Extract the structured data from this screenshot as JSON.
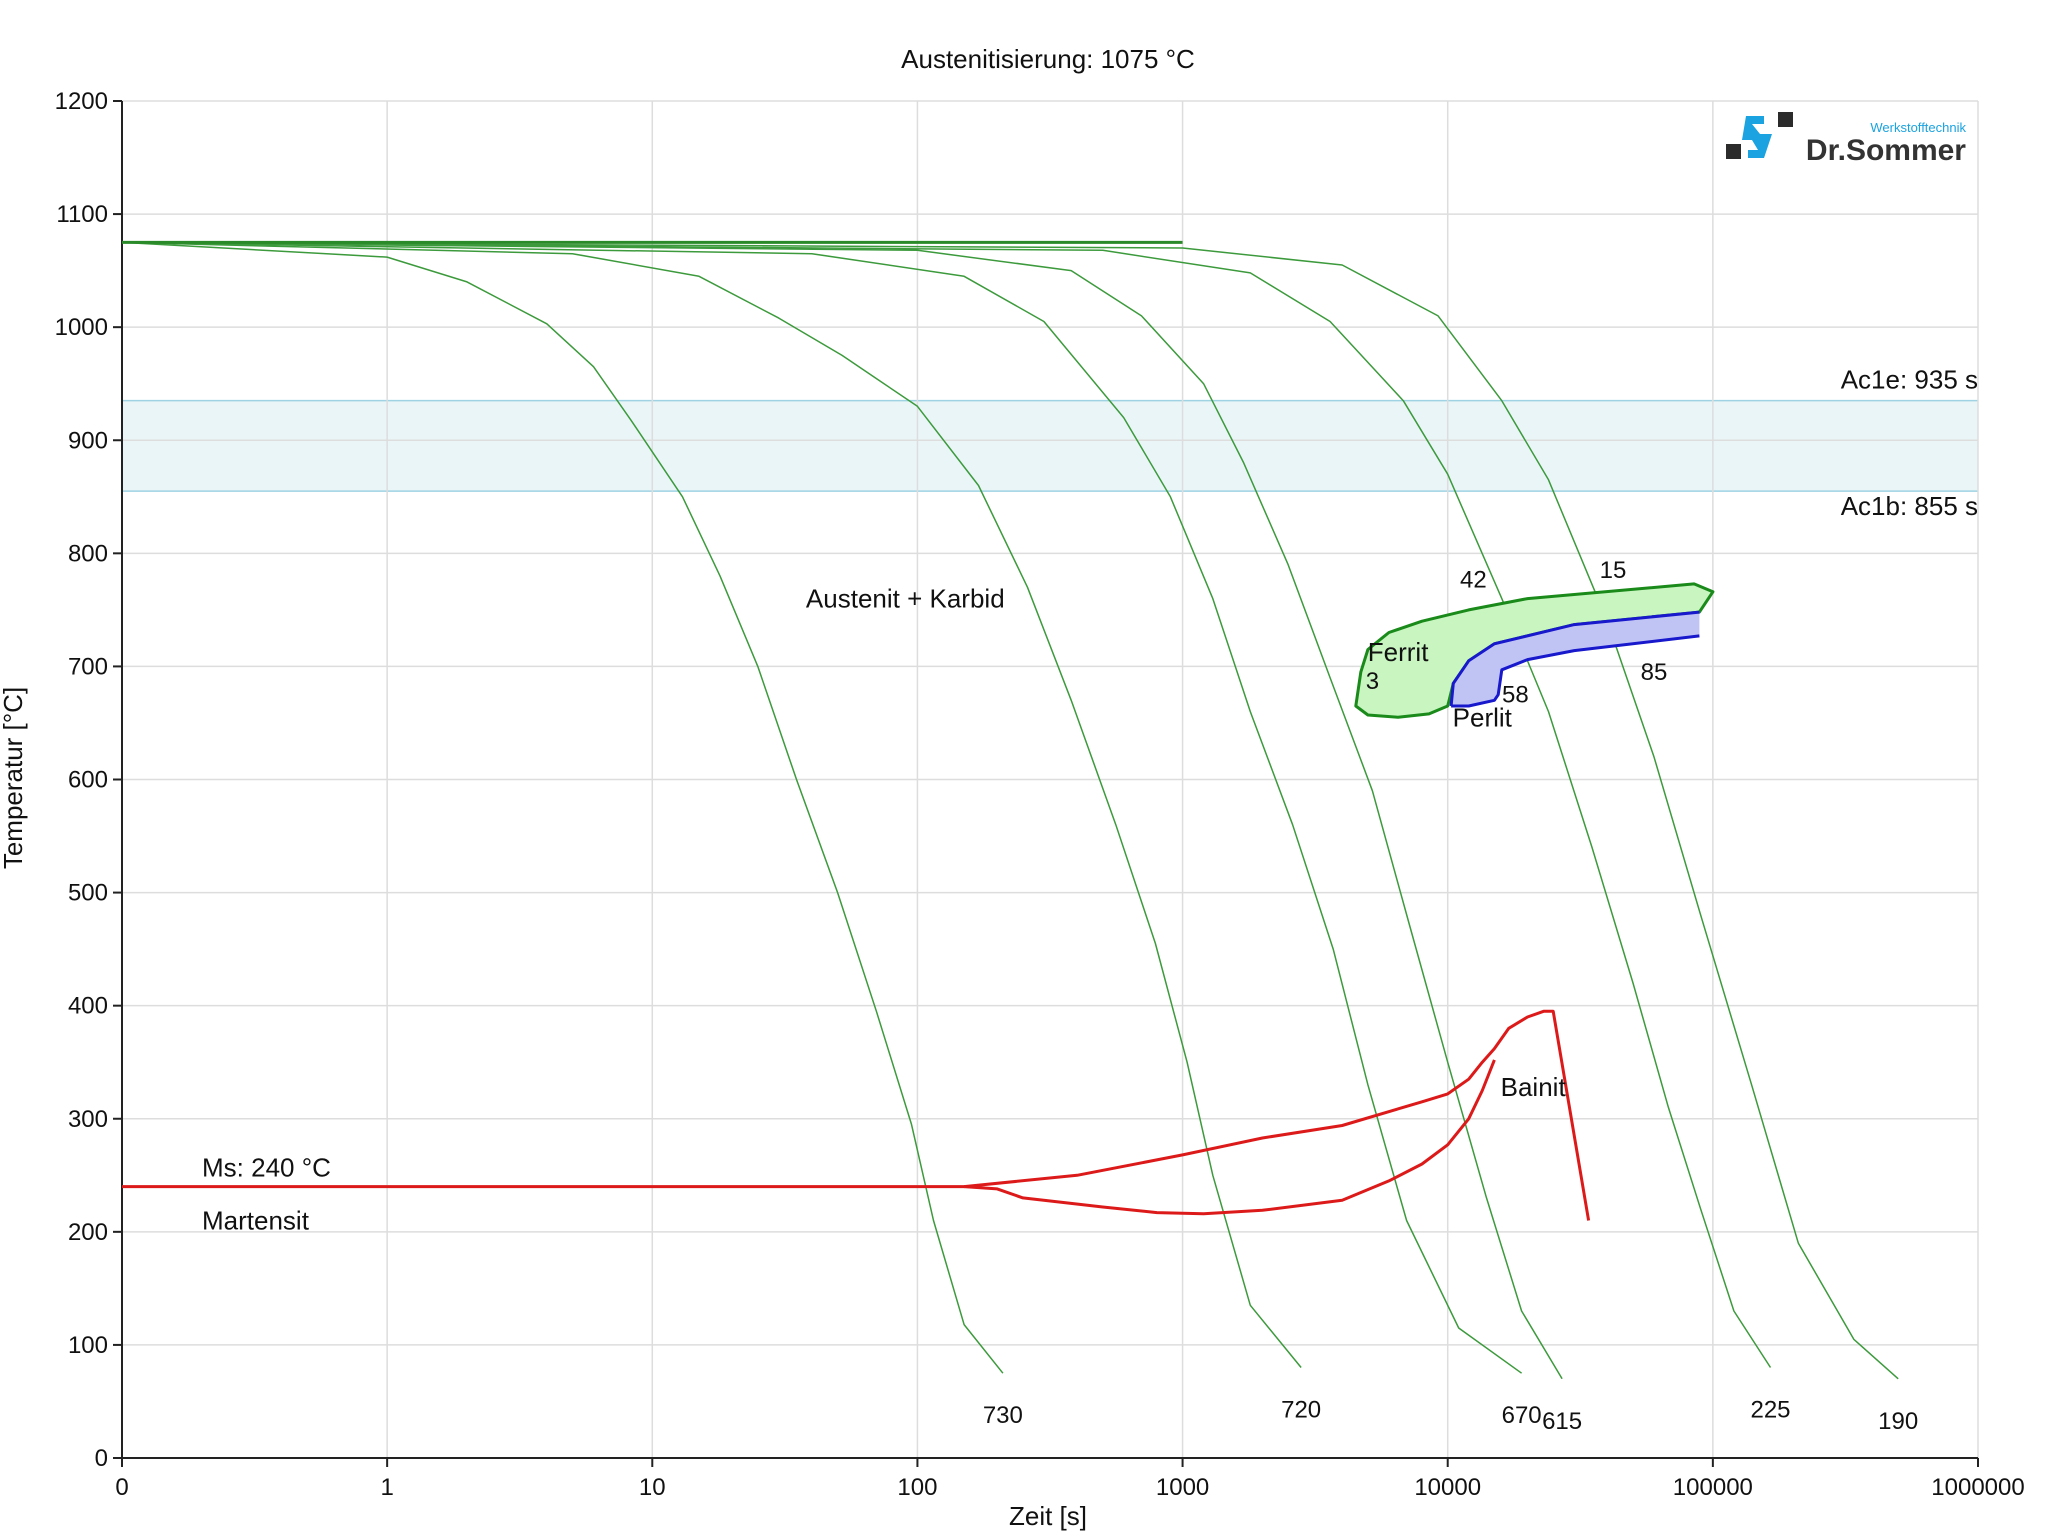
{
  "chart_data": {
    "type": "line",
    "title": "Austenitisierung: 1075 °C",
    "xlabel": "Zeit [s]",
    "ylabel": "Temperatur [°C]",
    "x_scale": "log",
    "xlim": [
      0.1,
      1000000
    ],
    "ylim": [
      0,
      1200
    ],
    "grid": true,
    "x_ticks": [
      {
        "value": 0.1,
        "label": "0"
      },
      {
        "value": 1,
        "label": "1"
      },
      {
        "value": 10,
        "label": "10"
      },
      {
        "value": 100,
        "label": "100"
      },
      {
        "value": 1000,
        "label": "1000"
      },
      {
        "value": 10000,
        "label": "10000"
      },
      {
        "value": 100000,
        "label": "100000"
      },
      {
        "value": 1000000,
        "label": "1000000"
      }
    ],
    "y_ticks": [
      0,
      100,
      200,
      300,
      400,
      500,
      600,
      700,
      800,
      900,
      1000,
      1100,
      1200
    ],
    "ac_band": {
      "upper": {
        "value": 935,
        "label": "Ac1e: 935 s"
      },
      "lower": {
        "value": 855,
        "label": "Ac1b: 855 s"
      },
      "color": "#eaf5f8",
      "line_color": "#9fd2e3"
    },
    "cooling_curves": [
      {
        "end_label": "730",
        "color": "#3c9a3c",
        "points": [
          [
            0.1,
            1075
          ],
          [
            1,
            1062
          ],
          [
            2,
            1040
          ],
          [
            4,
            1003
          ],
          [
            6,
            965
          ],
          [
            8.3,
            918
          ],
          [
            13,
            850
          ],
          [
            18,
            780
          ],
          [
            25,
            700
          ],
          [
            35,
            600
          ],
          [
            50,
            500
          ],
          [
            70,
            395
          ],
          [
            95,
            295
          ],
          [
            115,
            210
          ],
          [
            150,
            118
          ],
          [
            210,
            75
          ]
        ]
      },
      {
        "end_label": "720",
        "color": "#3c9a3c",
        "points": [
          [
            0.1,
            1075
          ],
          [
            5,
            1065
          ],
          [
            15,
            1045
          ],
          [
            30,
            1008
          ],
          [
            52,
            975
          ],
          [
            100,
            930
          ],
          [
            170,
            860
          ],
          [
            260,
            770
          ],
          [
            380,
            670
          ],
          [
            560,
            560
          ],
          [
            790,
            455
          ],
          [
            1040,
            350
          ],
          [
            1300,
            250
          ],
          [
            1800,
            135
          ],
          [
            2800,
            80
          ]
        ]
      },
      {
        "end_label": "670",
        "color": "#3c9a3c",
        "points": [
          [
            0.1,
            1075
          ],
          [
            40,
            1065
          ],
          [
            150,
            1045
          ],
          [
            300,
            1005
          ],
          [
            600,
            920
          ],
          [
            900,
            850
          ],
          [
            1300,
            760
          ],
          [
            1800,
            660
          ],
          [
            2600,
            560
          ],
          [
            3700,
            450
          ],
          [
            5000,
            330
          ],
          [
            7000,
            210
          ],
          [
            11000,
            115
          ],
          [
            19000,
            75
          ]
        ]
      },
      {
        "end_label": "615",
        "color": "#3c9a3c",
        "points": [
          [
            0.1,
            1075
          ],
          [
            100,
            1068
          ],
          [
            380,
            1050
          ],
          [
            700,
            1010
          ],
          [
            1200,
            950
          ],
          [
            1700,
            880
          ],
          [
            2500,
            790
          ],
          [
            3600,
            690
          ],
          [
            5200,
            590
          ],
          [
            7200,
            470
          ],
          [
            10000,
            350
          ],
          [
            14000,
            230
          ],
          [
            19000,
            130
          ],
          [
            27000,
            70
          ]
        ]
      },
      {
        "end_label": "225",
        "color": "#3c9a3c",
        "points": [
          [
            0.1,
            1075
          ],
          [
            500,
            1068
          ],
          [
            1800,
            1048
          ],
          [
            3600,
            1005
          ],
          [
            6800,
            935
          ],
          [
            10000,
            870
          ],
          [
            16000,
            760
          ],
          [
            24000,
            660
          ],
          [
            35000,
            540
          ],
          [
            50000,
            420
          ],
          [
            68000,
            310
          ],
          [
            90000,
            220
          ],
          [
            120000,
            130
          ],
          [
            165000,
            80
          ]
        ]
      },
      {
        "end_label": "190",
        "color": "#3c9a3c",
        "points": [
          [
            0.1,
            1075
          ],
          [
            1000,
            1070
          ],
          [
            4000,
            1055
          ],
          [
            9200,
            1010
          ],
          [
            16000,
            935
          ],
          [
            24000,
            865
          ],
          [
            40000,
            740
          ],
          [
            60000,
            620
          ],
          [
            90000,
            480
          ],
          [
            140000,
            330
          ],
          [
            210000,
            190
          ],
          [
            340000,
            105
          ],
          [
            500000,
            70
          ]
        ]
      }
    ],
    "curve_label_points": [
      {
        "label": "42",
        "x": 12500,
        "y": 770
      },
      {
        "label": "15",
        "x": 42000,
        "y": 778
      },
      {
        "label": "3",
        "x": 5200,
        "y": 680
      },
      {
        "label": "58",
        "x": 18000,
        "y": 668
      },
      {
        "label": "85",
        "x": 60000,
        "y": 688
      }
    ],
    "regions": [
      {
        "name": "Ferrit",
        "color": "#1a8a1a",
        "fill": "#c8f5c0",
        "label": "Ferrit"
      },
      {
        "name": "Perlit",
        "color": "#1818cc",
        "fill": "#c0c4f5",
        "label": "Perlit"
      },
      {
        "name": "Bainit",
        "color": "#dd1a1a",
        "fill": "none",
        "label": "Bainit"
      }
    ],
    "ferrite_outline": [
      [
        4700,
        695
      ],
      [
        4500,
        665
      ],
      [
        5000,
        657
      ],
      [
        6500,
        655
      ],
      [
        8500,
        658
      ],
      [
        10000,
        665
      ],
      [
        10500,
        685
      ],
      [
        12000,
        705
      ],
      [
        15000,
        720
      ],
      [
        30000,
        737
      ],
      [
        89000,
        748
      ],
      [
        100000,
        766
      ],
      [
        85000,
        773
      ],
      [
        20000,
        760
      ],
      [
        12000,
        750
      ],
      [
        8000,
        740
      ],
      [
        6000,
        730
      ],
      [
        5000,
        715
      ]
    ],
    "perlite_outline": [
      [
        10300,
        665
      ],
      [
        10500,
        685
      ],
      [
        12000,
        705
      ],
      [
        15000,
        720
      ],
      [
        30000,
        737
      ],
      [
        89000,
        748
      ],
      [
        89000,
        727
      ],
      [
        30000,
        714
      ],
      [
        20000,
        706
      ],
      [
        16000,
        697
      ],
      [
        15500,
        675
      ],
      [
        15000,
        670
      ],
      [
        12000,
        665
      ]
    ],
    "bainite_upper": [
      [
        150,
        240
      ],
      [
        400,
        250
      ],
      [
        1000,
        268
      ],
      [
        2000,
        283
      ],
      [
        4000,
        294
      ],
      [
        8000,
        315
      ],
      [
        10000,
        322
      ],
      [
        12000,
        335
      ],
      [
        13500,
        350
      ],
      [
        15000,
        362
      ],
      [
        17000,
        380
      ],
      [
        20000,
        390
      ],
      [
        23000,
        395
      ],
      [
        25000,
        395
      ],
      [
        34000,
        210
      ]
    ],
    "bainite_lower": [
      [
        150,
        240
      ],
      [
        200,
        238
      ],
      [
        250,
        230
      ],
      [
        500,
        222
      ],
      [
        800,
        217
      ],
      [
        1200,
        216
      ],
      [
        2000,
        219
      ],
      [
        4000,
        228
      ],
      [
        6000,
        245
      ],
      [
        8000,
        260
      ],
      [
        10000,
        277
      ],
      [
        12000,
        300
      ],
      [
        13500,
        325
      ],
      [
        15000,
        352
      ]
    ],
    "ms_line": {
      "value": 240,
      "label": "Ms: 240 °C"
    },
    "region_labels": [
      {
        "label": "Austenit + Karbid",
        "x": 90,
        "y": 752
      },
      {
        "label": "Ferrit",
        "x": 6500,
        "y": 705
      },
      {
        "label": "Perlit",
        "x": 13500,
        "y": 647
      },
      {
        "label": "Bainit",
        "x": 21000,
        "y": 320
      },
      {
        "label": "Martensit",
        "x": 0.3,
        "y": 202
      }
    ]
  },
  "logo": {
    "brand": "Dr.Sommer",
    "tagline": "Werkstofftechnik"
  }
}
